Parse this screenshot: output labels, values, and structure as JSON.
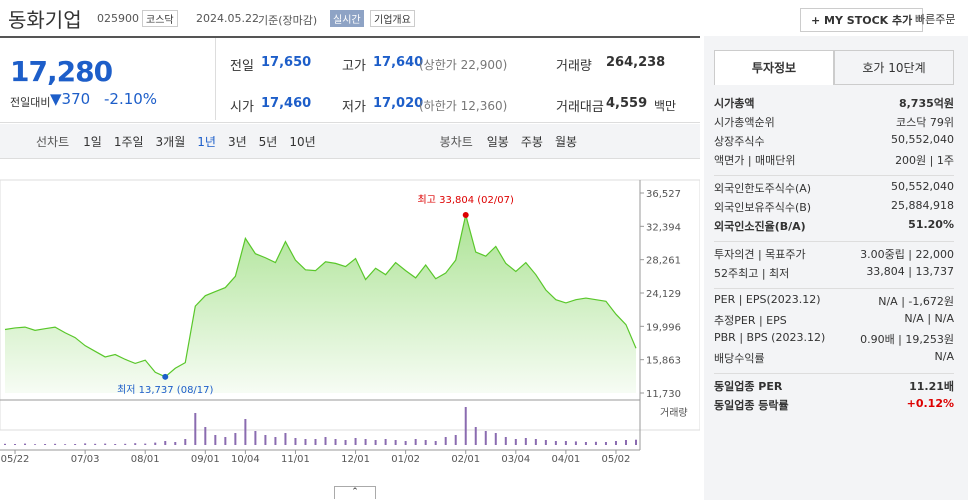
{
  "header": {
    "name": "동화기업",
    "code": "025900",
    "market": "코스닥",
    "date": "2024.05.22",
    "basis": "기준(장마감)",
    "realtime": "실시간",
    "overview": "기업개요",
    "mystock": "+ MY STOCK 추가",
    "quick_order": "빠른주문"
  },
  "price": {
    "current": "17,280",
    "change_label": "전일대비",
    "change": "370",
    "rate": "-2.10%"
  },
  "summary": [
    {
      "label": "전일",
      "value": "17,650"
    },
    {
      "label": "고가",
      "value": "17,640",
      "note": "(상한가 22,900)"
    },
    {
      "label": "거래량",
      "value": "264,238"
    },
    {
      "label": "시가",
      "value": "17,460"
    },
    {
      "label": "저가",
      "value": "17,020",
      "note": "(하한가 12,360)"
    },
    {
      "label": "거래대금",
      "value": "4,559",
      "note": "백만"
    }
  ],
  "tabs": {
    "line_chart": "선차트",
    "periods": [
      "1일",
      "1주일",
      "3개월",
      "1년",
      "3년",
      "5년",
      "10년"
    ],
    "selected_period": 3,
    "candle_chart": "봉차트",
    "candle_periods": [
      "일봉",
      "주봉",
      "월봉"
    ]
  },
  "chart": {
    "type": "line",
    "color": "#59c72a",
    "values": [
      19600,
      19800,
      19900,
      19500,
      19700,
      19900,
      19200,
      18600,
      17600,
      16900,
      16200,
      16500,
      15900,
      15400,
      15800,
      14300,
      13737,
      14800,
      15500,
      22500,
      23800,
      24300,
      24800,
      26200,
      30900,
      29000,
      28500,
      27900,
      30500,
      28200,
      27000,
      26900,
      28000,
      27800,
      27400,
      28400,
      25800,
      27200,
      26400,
      27900,
      26900,
      26000,
      27600,
      25900,
      26600,
      28200,
      33804,
      29200,
      28700,
      29900,
      27800,
      26800,
      27900,
      26400,
      24500,
      23300,
      22900,
      23300,
      23500,
      23300,
      23100,
      21500,
      20200,
      17280
    ],
    "ylim": [
      11730,
      36527
    ],
    "yticks": [
      {
        "value": 11730,
        "label": "11,730"
      },
      {
        "value": 15863,
        "label": "15,863"
      },
      {
        "value": 19996,
        "label": "19,996"
      },
      {
        "value": 24129,
        "label": "24,129"
      },
      {
        "value": 28261,
        "label": "28,261"
      },
      {
        "value": 32394,
        "label": "32,394"
      },
      {
        "value": 36527,
        "label": "36,527"
      }
    ],
    "xticks": [
      {
        "value": 1,
        "label": "05/22"
      },
      {
        "value": 8,
        "label": "07/03"
      },
      {
        "value": 14,
        "label": "08/01"
      },
      {
        "value": 20,
        "label": "09/01"
      },
      {
        "value": 24,
        "label": "10/04"
      },
      {
        "value": 29,
        "label": "11/01"
      },
      {
        "value": 35,
        "label": "12/01"
      },
      {
        "value": 40,
        "label": "01/02"
      },
      {
        "value": 46,
        "label": "02/01"
      },
      {
        "value": 51,
        "label": "03/04"
      },
      {
        "value": 56,
        "label": "04/01"
      },
      {
        "value": 61,
        "label": "05/02"
      }
    ],
    "high": {
      "index": 46,
      "label": "최고 33,804 (02/07)"
    },
    "low": {
      "index": 16,
      "label": "최저 13,737 (08/17)"
    },
    "volume_label": "거래량",
    "volume_color": "#8a6bb0",
    "volume_ylim": [
      0,
      2000000
    ],
    "volume": [
      60000,
      50000,
      70000,
      40000,
      50000,
      60000,
      40000,
      50000,
      80000,
      60000,
      70000,
      50000,
      60000,
      90000,
      70000,
      120000,
      200000,
      150000,
      300000,
      1600000,
      900000,
      500000,
      400000,
      600000,
      1300000,
      700000,
      500000,
      400000,
      600000,
      350000,
      300000,
      300000,
      400000,
      300000,
      250000,
      350000,
      300000,
      250000,
      300000,
      250000,
      200000,
      300000,
      250000,
      200000,
      400000,
      500000,
      1900000,
      900000,
      700000,
      600000,
      400000,
      300000,
      350000,
      300000,
      250000,
      200000,
      200000,
      180000,
      150000,
      160000,
      150000,
      200000,
      250000,
      264238
    ]
  },
  "info": {
    "tabs": [
      "투자정보",
      "호가 10단계"
    ],
    "groups": [
      [
        {
          "label": "시가총액",
          "value": "8,735억원"
        },
        {
          "label": "시가총액순위",
          "value": "코스닥 79위"
        },
        {
          "label": "상장주식수",
          "value": "50,552,040"
        },
        {
          "label": "액면가 | 매매단위",
          "value": "200원 | 1주"
        }
      ],
      [
        {
          "label": "외국인한도주식수(A)",
          "value": "50,552,040"
        },
        {
          "label": "외국인보유주식수(B)",
          "value": "25,884,918"
        },
        {
          "label": "외국인소진율(B/A)",
          "value": "51.20%"
        }
      ],
      [
        {
          "label": "투자의견 | 목표주가",
          "value": "3.00중립 | 22,000"
        },
        {
          "label": "52주최고 | 최저",
          "value": "33,804 | 13,737"
        }
      ],
      [
        {
          "label": "PER | EPS(2023.12)",
          "value": "N/A | -1,672원"
        },
        {
          "label": "추정PER | EPS",
          "value": "N/A | N/A"
        },
        {
          "label": "PBR | BPS (2023.12)",
          "value": "0.90배 | 19,253원"
        },
        {
          "label": "배당수익률",
          "value": "N/A"
        }
      ],
      [
        {
          "label": "동일업종 PER",
          "value": "11.21배"
        },
        {
          "label": "동일업종 등락률",
          "value": "+0.12%"
        }
      ]
    ]
  }
}
